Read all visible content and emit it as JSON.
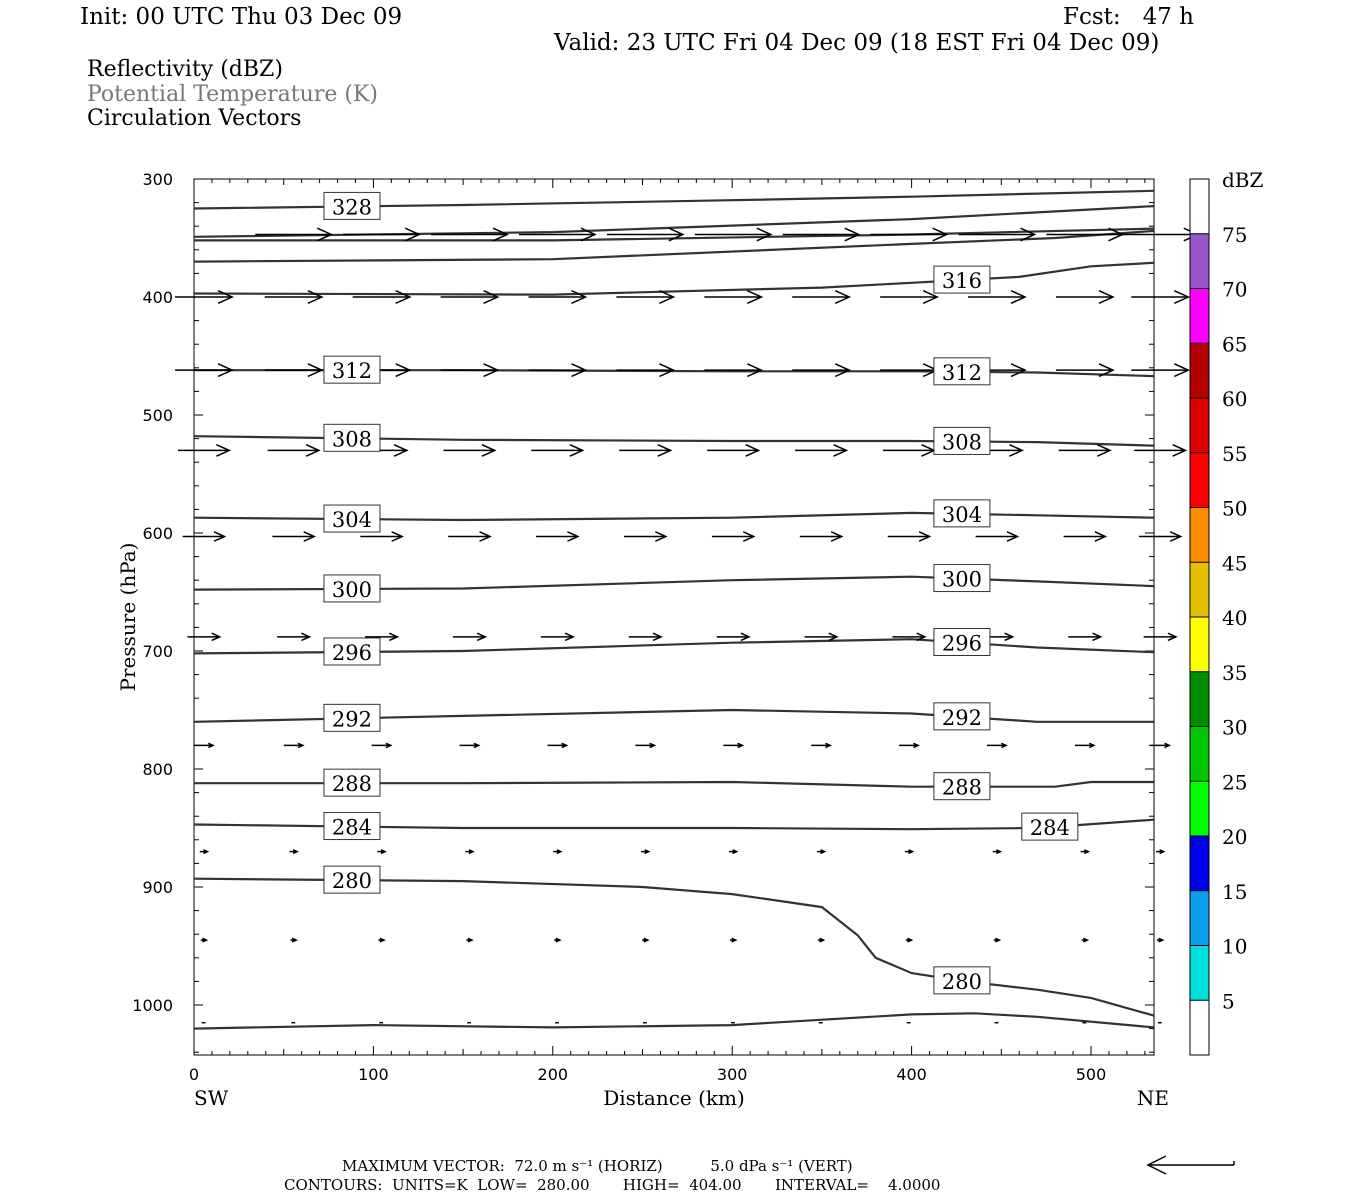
{
  "header": {
    "init": "Init: 00 UTC Thu 03 Dec 09",
    "fcst": "Fcst:   47 h",
    "valid": "Valid: 23 UTC Fri 04 Dec 09 (18 EST Fri 04 Dec 09)"
  },
  "legend_lines": {
    "reflectivity": "Reflectivity (dBZ)",
    "theta": "Potential Temperature (K)",
    "vectors": "Circulation Vectors"
  },
  "colorbar": {
    "title": "dBZ",
    "levels": [
      5,
      10,
      15,
      20,
      25,
      30,
      35,
      40,
      45,
      50,
      55,
      60,
      65,
      70,
      75
    ],
    "colors": [
      "#ffffff",
      "#00e0e0",
      "#0aa0ee",
      "#0000e8",
      "#00ff00",
      "#00c800",
      "#008c00",
      "#ffff00",
      "#e6c000",
      "#ff8c00",
      "#ff0000",
      "#dc0000",
      "#b40000",
      "#ff00ff",
      "#9955cc",
      "#ffffff"
    ]
  },
  "footer": {
    "max_vector": "MAXIMUM VECTOR:  72.0 m s⁻¹ (HORIZ)          5.0 dPa s⁻¹ (VERT)",
    "contours": "CONTOURS:  UNITS=K  LOW=  280.00       HIGH=  404.00       INTERVAL=    4.0000"
  },
  "chart_data": {
    "type": "line",
    "title": "",
    "xlabel": "Distance (km)",
    "ylabel": "Pressure (hPa)",
    "xlim": [
      0,
      535
    ],
    "ylim": [
      1040,
      300
    ],
    "x_ticks": [
      0,
      100,
      200,
      300,
      400,
      500
    ],
    "y_ticks": [
      300,
      400,
      500,
      600,
      700,
      800,
      900,
      1000
    ],
    "x_end_labels": {
      "left": "SW",
      "right": "NE"
    },
    "isentropes": [
      {
        "label": "328",
        "labels_at": [
          73
        ],
        "points": [
          [
            0,
            325
          ],
          [
            150,
            322
          ],
          [
            300,
            318
          ],
          [
            400,
            315
          ],
          [
            535,
            310
          ]
        ]
      },
      {
        "label": "",
        "labels_at": [],
        "points": [
          [
            0,
            349
          ],
          [
            200,
            345
          ],
          [
            400,
            334
          ],
          [
            535,
            323
          ]
        ]
      },
      {
        "label": "",
        "labels_at": [],
        "points": [
          [
            0,
            352
          ],
          [
            200,
            352
          ],
          [
            400,
            347
          ],
          [
            535,
            342
          ]
        ]
      },
      {
        "label": "",
        "labels_at": [],
        "points": [
          [
            0,
            370
          ],
          [
            200,
            368
          ],
          [
            400,
            355
          ],
          [
            480,
            350
          ],
          [
            535,
            344
          ]
        ]
      },
      {
        "label": "316",
        "labels_at": [
          413
        ],
        "points": [
          [
            0,
            397
          ],
          [
            200,
            398
          ],
          [
            350,
            392
          ],
          [
            400,
            388
          ],
          [
            460,
            383
          ],
          [
            500,
            374
          ],
          [
            535,
            371
          ]
        ]
      },
      {
        "label": "312",
        "labels_at": [
          73,
          413
        ],
        "points": [
          [
            0,
            462
          ],
          [
            150,
            462
          ],
          [
            300,
            463
          ],
          [
            400,
            463
          ],
          [
            470,
            464
          ],
          [
            535,
            467
          ]
        ]
      },
      {
        "label": "308",
        "labels_at": [
          73,
          413
        ],
        "points": [
          [
            0,
            518
          ],
          [
            150,
            521
          ],
          [
            300,
            522
          ],
          [
            400,
            522
          ],
          [
            470,
            523
          ],
          [
            535,
            526
          ]
        ]
      },
      {
        "label": "304",
        "labels_at": [
          73,
          413
        ],
        "points": [
          [
            0,
            587
          ],
          [
            150,
            589
          ],
          [
            300,
            587
          ],
          [
            400,
            583
          ],
          [
            470,
            585
          ],
          [
            535,
            587
          ]
        ]
      },
      {
        "label": "300",
        "labels_at": [
          73,
          413
        ],
        "points": [
          [
            0,
            648
          ],
          [
            150,
            647
          ],
          [
            300,
            640
          ],
          [
            400,
            637
          ],
          [
            470,
            641
          ],
          [
            535,
            645
          ]
        ]
      },
      {
        "label": "296",
        "labels_at": [
          73,
          413
        ],
        "points": [
          [
            0,
            702
          ],
          [
            150,
            700
          ],
          [
            300,
            693
          ],
          [
            400,
            690
          ],
          [
            470,
            697
          ],
          [
            535,
            701
          ]
        ]
      },
      {
        "label": "292",
        "labels_at": [
          73,
          413
        ],
        "points": [
          [
            0,
            760
          ],
          [
            150,
            755
          ],
          [
            300,
            750
          ],
          [
            400,
            753
          ],
          [
            470,
            760
          ],
          [
            535,
            760
          ]
        ]
      },
      {
        "label": "288",
        "labels_at": [
          73,
          413
        ],
        "points": [
          [
            0,
            812
          ],
          [
            150,
            812
          ],
          [
            300,
            811
          ],
          [
            400,
            815
          ],
          [
            480,
            815
          ],
          [
            500,
            811
          ],
          [
            535,
            811
          ]
        ]
      },
      {
        "label": "284",
        "labels_at": [
          73,
          462
        ],
        "points": [
          [
            0,
            847
          ],
          [
            150,
            850
          ],
          [
            300,
            850
          ],
          [
            400,
            851
          ],
          [
            470,
            850
          ],
          [
            535,
            843
          ]
        ]
      },
      {
        "label": "280",
        "labels_at": [
          73,
          413
        ],
        "points": [
          [
            0,
            893
          ],
          [
            150,
            895
          ],
          [
            250,
            900
          ],
          [
            300,
            906
          ],
          [
            350,
            917
          ],
          [
            370,
            941
          ],
          [
            380,
            960
          ],
          [
            400,
            973
          ],
          [
            430,
            980
          ],
          [
            470,
            987
          ],
          [
            500,
            994
          ],
          [
            535,
            1009
          ]
        ]
      },
      {
        "label": "",
        "labels_at": [],
        "points": [
          [
            0,
            1020
          ],
          [
            100,
            1017
          ],
          [
            200,
            1019
          ],
          [
            300,
            1017
          ],
          [
            400,
            1008
          ],
          [
            435,
            1007
          ],
          [
            470,
            1010
          ],
          [
            535,
            1019
          ]
        ]
      }
    ],
    "vector_levels": [
      {
        "pressure": 347,
        "u": [
          null,
          40,
          40,
          40,
          40,
          40,
          40,
          40,
          40,
          40,
          40,
          40
        ],
        "head": [
          false,
          true,
          true,
          true,
          true,
          true,
          true,
          true,
          true,
          true,
          true,
          true
        ]
      },
      {
        "pressure": 400,
        "u": [
          30,
          30,
          30,
          30,
          30,
          30,
          30,
          30,
          30,
          30,
          30,
          30
        ],
        "head": [
          true,
          true,
          true,
          true,
          true,
          true,
          true,
          true,
          true,
          true,
          true,
          true
        ]
      },
      {
        "pressure": 462,
        "u": [
          30,
          30,
          30,
          30,
          30,
          30,
          30,
          30,
          30,
          30,
          30,
          30
        ],
        "head": [
          true,
          true,
          true,
          true,
          true,
          true,
          true,
          true,
          true,
          true,
          true,
          true
        ]
      },
      {
        "pressure": 530,
        "u": [
          27,
          27,
          27,
          27,
          27,
          27,
          27,
          27,
          27,
          27,
          27,
          27
        ],
        "head": [
          true,
          true,
          true,
          true,
          true,
          true,
          true,
          true,
          true,
          true,
          true,
          true
        ]
      },
      {
        "pressure": 603,
        "u": [
          22,
          22,
          22,
          22,
          22,
          22,
          22,
          22,
          22,
          22,
          22,
          22
        ],
        "head": [
          true,
          true,
          true,
          true,
          true,
          true,
          true,
          true,
          true,
          true,
          true,
          true
        ]
      },
      {
        "pressure": 688,
        "u": [
          17,
          17,
          17,
          17,
          17,
          17,
          17,
          17,
          17,
          17,
          17,
          17
        ],
        "head": [
          true,
          true,
          true,
          true,
          true,
          true,
          true,
          true,
          true,
          true,
          true,
          true
        ]
      },
      {
        "pressure": 780,
        "u": [
          10,
          10,
          10,
          10,
          10,
          10,
          10,
          10,
          10,
          10,
          10,
          10
        ],
        "head": [
          true,
          true,
          true,
          true,
          true,
          true,
          true,
          true,
          true,
          true,
          true,
          true
        ]
      },
      {
        "pressure": 870,
        "u": [
          4,
          4,
          4,
          4,
          4,
          4,
          4,
          4,
          4,
          4,
          4,
          4
        ],
        "head": [
          true,
          true,
          true,
          true,
          true,
          true,
          true,
          true,
          true,
          true,
          true,
          true
        ]
      },
      {
        "pressure": 945,
        "u": [
          3,
          3,
          3,
          3,
          3,
          3,
          3,
          3,
          3,
          3,
          3,
          3
        ],
        "head": [
          true,
          true,
          true,
          true,
          true,
          true,
          true,
          true,
          true,
          true,
          true,
          true
        ]
      },
      {
        "pressure": 1015,
        "u": [
          2,
          2,
          2,
          2,
          2,
          2,
          2,
          2,
          2,
          2,
          2,
          2
        ],
        "head": [
          true,
          true,
          true,
          true,
          true,
          true,
          true,
          true,
          true,
          true,
          true,
          true
        ]
      }
    ],
    "vector_x": [
      2,
      52,
      101,
      150,
      199,
      248,
      297,
      346,
      395,
      444,
      493,
      535
    ]
  }
}
